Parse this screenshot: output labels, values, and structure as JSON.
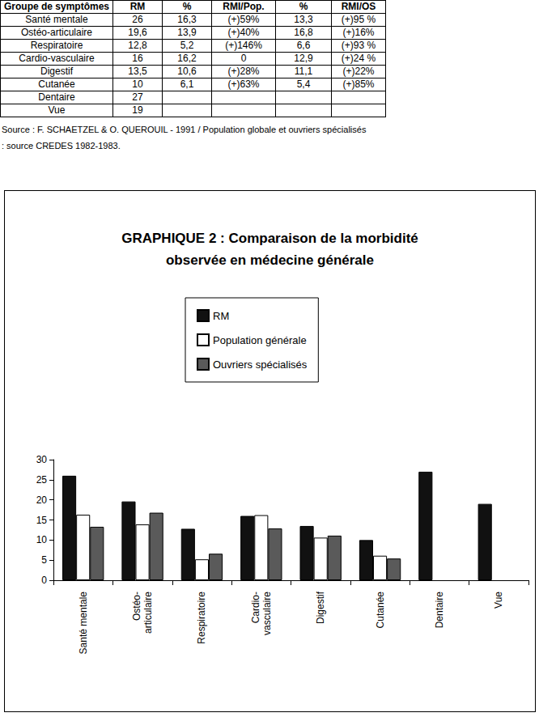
{
  "table": {
    "header": [
      "Groupe de symptômes",
      "RM",
      "%",
      "RMI/Pop.",
      "%",
      "RMI/OS"
    ],
    "rows": [
      [
        "Santé mentale",
        "26",
        "16,3",
        "(+)59%",
        "13,3",
        "(+)95 %"
      ],
      [
        "Ostéo-articulaire",
        "19,6",
        "13,9",
        "(+)40%",
        "16,8",
        "(+)16%"
      ],
      [
        "Respiratoire",
        "12,8",
        "5,2",
        "(+)146%",
        "6,6",
        "(+)93 %"
      ],
      [
        "Cardio-vasculaire",
        "16",
        "16,2",
        "0",
        "12,9",
        "(+)24 %"
      ],
      [
        "Digestif",
        "13,5",
        "10,6",
        "(+)28%",
        "11,1",
        "(+)22%"
      ],
      [
        "Cutanée",
        "10",
        "6,1",
        "(+)63%",
        "5,4",
        "(+)85%"
      ],
      [
        "Dentaire",
        "27",
        null,
        null,
        null,
        null
      ],
      [
        "Vue",
        "19",
        null,
        null,
        null,
        null
      ]
    ]
  },
  "source": [
    "Source : F. SCHAETZEL & O. QUEROUIL - 1991 / Population globale et ouvriers spécialisés",
    ": source CREDES 1982-1983."
  ],
  "chart_data": {
    "type": "bar",
    "title": "GRAPHIQUE 2 : Comparaison de la morbidité\nobservée en médecine générale",
    "categories": [
      "Santé mentale",
      "Ostéo-\narticulaire",
      "Respiratoire",
      "Cardio-\nvasculaire",
      "Digestif",
      "Cutanée",
      "Dentaire",
      "Vue"
    ],
    "series": [
      {
        "name": "RM",
        "color": "#111111",
        "values": [
          26,
          19.6,
          12.8,
          16,
          13.5,
          10,
          27,
          19
        ]
      },
      {
        "name": "Population générale",
        "color": "#ffffff",
        "values": [
          16.3,
          13.9,
          5.2,
          16.2,
          10.6,
          6.1,
          null,
          null
        ]
      },
      {
        "name": "Ouvriers spécialisés",
        "color": "#5a5a5a",
        "values": [
          13.3,
          16.8,
          6.6,
          12.9,
          11.1,
          5.4,
          null,
          null
        ]
      }
    ],
    "ylim": [
      0,
      30
    ],
    "yticks": [
      0,
      5,
      10,
      15,
      20,
      25,
      30
    ],
    "grid": false,
    "legend": "top",
    "data_labels": false
  }
}
